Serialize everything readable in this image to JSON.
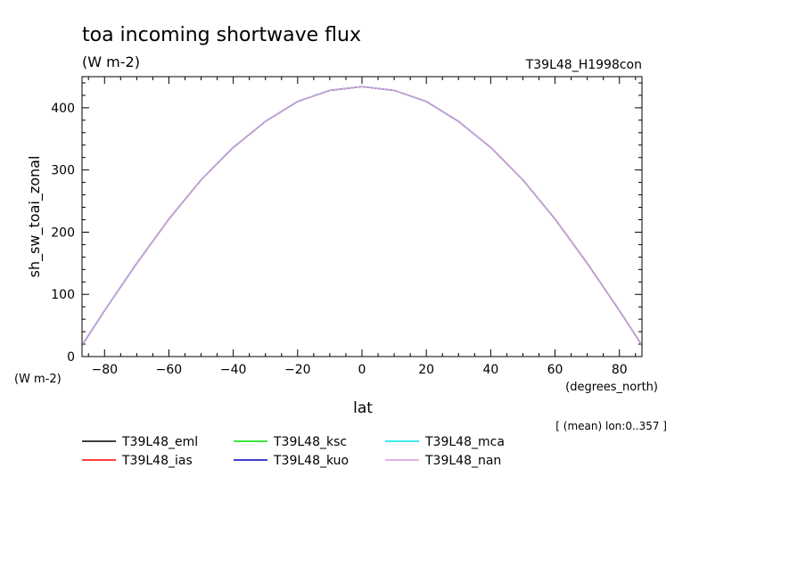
{
  "chart_data": {
    "type": "line",
    "title": "toa incoming shortwave flux",
    "subtitle": "(W m-2)",
    "experiment_label": "T39L48_H1998con",
    "ylabel": "sh_sw_toai_zonal",
    "ylabel_units": "(W m-2)",
    "xlabel": "lat",
    "xlabel_units": "(degrees_north)",
    "note": "[ (mean) lon:0..357 ]",
    "xlim": [
      -87,
      87
    ],
    "ylim": [
      0,
      450
    ],
    "xticks": [
      -80,
      -60,
      -40,
      -20,
      0,
      20,
      40,
      60,
      80
    ],
    "yticks": [
      0,
      100,
      200,
      300,
      400
    ],
    "grid": false,
    "legend_position": "bottom",
    "x": [
      -87,
      -80,
      -70,
      -60,
      -50,
      -40,
      -30,
      -20,
      -10,
      0,
      10,
      20,
      30,
      40,
      50,
      60,
      70,
      80,
      87
    ],
    "series": [
      {
        "name": "T39L48_eml",
        "color": "#000000",
        "values": [
          18,
          74,
          150,
          221,
          284,
          336,
          378,
          410,
          428,
          434,
          428,
          410,
          378,
          336,
          284,
          221,
          150,
          74,
          18
        ]
      },
      {
        "name": "T39L48_ias",
        "color": "#ff0000",
        "values": [
          18,
          74,
          150,
          221,
          284,
          336,
          378,
          410,
          428,
          434,
          428,
          410,
          378,
          336,
          284,
          221,
          150,
          74,
          18
        ]
      },
      {
        "name": "T39L48_ksc",
        "color": "#00dd00",
        "values": [
          18,
          74,
          150,
          221,
          284,
          336,
          378,
          410,
          428,
          434,
          428,
          410,
          378,
          336,
          284,
          221,
          150,
          74,
          18
        ]
      },
      {
        "name": "T39L48_kuo",
        "color": "#0000bb",
        "values": [
          18,
          74,
          150,
          221,
          284,
          336,
          378,
          410,
          428,
          434,
          428,
          410,
          378,
          336,
          284,
          221,
          150,
          74,
          18
        ]
      },
      {
        "name": "T39L48_mca",
        "color": "#00e5e5",
        "values": [
          18,
          74,
          150,
          221,
          284,
          336,
          378,
          410,
          428,
          434,
          428,
          410,
          378,
          336,
          284,
          221,
          150,
          74,
          18
        ]
      },
      {
        "name": "T39L48_nan",
        "color": "#dd99dd",
        "values": [
          18,
          74,
          150,
          221,
          284,
          336,
          378,
          410,
          428,
          434,
          428,
          410,
          378,
          336,
          284,
          221,
          150,
          74,
          18
        ]
      }
    ]
  }
}
